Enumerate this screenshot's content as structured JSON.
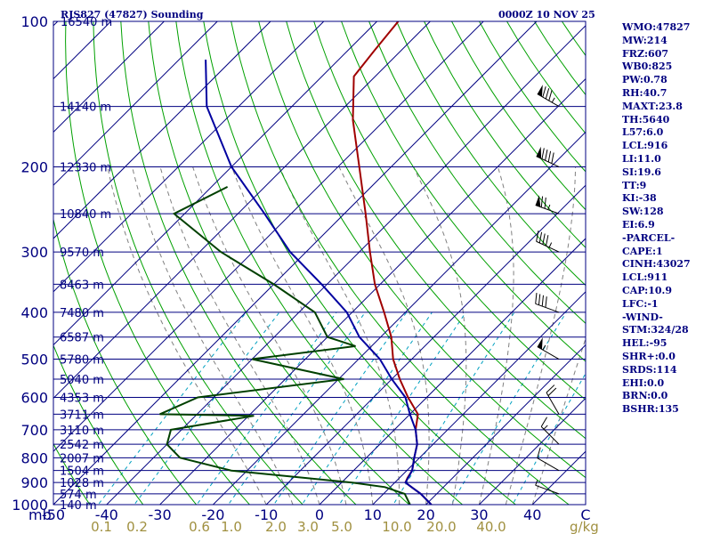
{
  "title": "RJS827 (47827) Sounding",
  "datetime": "0000Z 10 NOV 25",
  "indices": [
    "WMO:47827",
    "MW:214",
    "FRZ:607",
    "WB0:825",
    "PW:0.78",
    "RH:40.7",
    "MAXT:23.8",
    "TH:5640",
    "L57:6.0",
    "LCL:916",
    "LI:11.0",
    "SI:19.6",
    "TT:9",
    "KI:-38",
    "SW:128",
    "EI:6.9",
    "-PARCEL-",
    "CAPE:1",
    "CINH:43027",
    "LCL:911",
    "CAP:10.9",
    "LFC:-1",
    "-WIND-",
    "STM:324/28",
    "HEL:-95",
    "SHR+:0.0",
    "SRDS:114",
    "EHI:0.0",
    "BRN:0.0",
    "BSHR:135"
  ],
  "chart_data": {
    "type": "line",
    "diagram": "skew-T log-P",
    "colors": {
      "frame": "#000080",
      "isobar": "#000080",
      "isotherm": "#000080",
      "dry_adiabat": "#00a000",
      "moist_adiabat": "#808080",
      "mixing_ratio": "#00a0c0",
      "temperature": "#a00000",
      "dewpoint": "#004000",
      "parcel": "#0000a0",
      "wind_barb": "#000000"
    },
    "pressure_axis": {
      "range": [
        1000,
        100
      ],
      "scale": "log",
      "unit": "mb",
      "ticks": [
        100,
        200,
        300,
        400,
        500,
        600,
        700,
        800,
        900,
        1000
      ]
    },
    "temperature_axis": {
      "unit_label": "C",
      "range": [
        -50,
        50
      ],
      "ticks": [
        -50,
        -40,
        -30,
        -20,
        -10,
        0,
        10,
        20,
        30,
        40
      ]
    },
    "mixing_ratio_labels": [
      "0.1",
      "0.2",
      "0.6",
      "1.0",
      "2.0",
      "3.0",
      "5.0",
      "10.0",
      "20.0",
      "40.0"
    ],
    "mixing_ratio_unit": "g/kg",
    "mb_label": "mb",
    "height_levels": [
      {
        "p": 150,
        "label": "14140 m"
      },
      {
        "p": 200,
        "label": "12330 m"
      },
      {
        "p": 250,
        "label": "10840 m"
      },
      {
        "p": 300,
        "label": "9570 m"
      },
      {
        "p": 350,
        "label": "8463 m"
      },
      {
        "p": 400,
        "label": "7480 m"
      },
      {
        "p": 450,
        "label": "6587 m"
      },
      {
        "p": 500,
        "label": "5780 m"
      },
      {
        "p": 550,
        "label": "5040 m"
      },
      {
        "p": 600,
        "label": "4353 m"
      },
      {
        "p": 650,
        "label": "3711 m"
      },
      {
        "p": 700,
        "label": "3110 m"
      },
      {
        "p": 750,
        "label": "2542 m"
      },
      {
        "p": 800,
        "label": "2007 m"
      },
      {
        "p": 850,
        "label": "1504 m"
      },
      {
        "p": 900,
        "label": "1028 m"
      },
      {
        "p": 950,
        "label": "574 m"
      },
      {
        "p": 1000,
        "label": "140 m"
      }
    ],
    "top_height_label": "16540 m",
    "series": [
      {
        "key": "temperature",
        "points": [
          [
            100,
            -76
          ],
          [
            115,
            -75
          ],
          [
            130,
            -74
          ],
          [
            160,
            -66
          ],
          [
            200,
            -56
          ],
          [
            250,
            -46
          ],
          [
            300,
            -38
          ],
          [
            350,
            -31
          ],
          [
            400,
            -24
          ],
          [
            450,
            -18
          ],
          [
            500,
            -13.5
          ],
          [
            550,
            -8.5
          ],
          [
            600,
            -3.5
          ],
          [
            650,
            1.5
          ],
          [
            700,
            4
          ],
          [
            750,
            7
          ],
          [
            800,
            9
          ],
          [
            850,
            11
          ],
          [
            880,
            11.5
          ],
          [
            900,
            12
          ],
          [
            920,
            14
          ],
          [
            950,
            17
          ],
          [
            1000,
            21
          ]
        ]
      },
      {
        "key": "dewpoint",
        "points": [
          [
            220,
            -77
          ],
          [
            250,
            -82
          ],
          [
            300,
            -66
          ],
          [
            350,
            -50
          ],
          [
            400,
            -37
          ],
          [
            450,
            -30
          ],
          [
            470,
            -23
          ],
          [
            500,
            -40
          ],
          [
            550,
            -19
          ],
          [
            600,
            -43
          ],
          [
            650,
            -47
          ],
          [
            655,
            -29
          ],
          [
            700,
            -42
          ],
          [
            750,
            -40
          ],
          [
            800,
            -35
          ],
          [
            850,
            -23
          ],
          [
            900,
            2
          ],
          [
            920,
            9
          ],
          [
            950,
            14
          ],
          [
            1000,
            17
          ]
        ]
      },
      {
        "key": "parcel",
        "points": [
          [
            120,
            -105
          ],
          [
            150,
            -96
          ],
          [
            200,
            -80
          ],
          [
            250,
            -65
          ],
          [
            300,
            -53
          ],
          [
            350,
            -41
          ],
          [
            400,
            -31
          ],
          [
            450,
            -24
          ],
          [
            500,
            -16
          ],
          [
            550,
            -10
          ],
          [
            600,
            -4
          ],
          [
            650,
            0
          ],
          [
            700,
            4
          ],
          [
            750,
            7
          ],
          [
            800,
            9
          ],
          [
            850,
            11
          ],
          [
            900,
            12
          ],
          [
            920,
            14
          ],
          [
            950,
            17
          ],
          [
            1000,
            21
          ]
        ]
      }
    ],
    "wind_barbs": [
      {
        "p": 150,
        "dir": 300,
        "speed": 85
      },
      {
        "p": 200,
        "dir": 295,
        "speed": 90
      },
      {
        "p": 250,
        "dir": 290,
        "speed": 75
      },
      {
        "p": 300,
        "dir": 295,
        "speed": 45
      },
      {
        "p": 400,
        "dir": 290,
        "speed": 40
      },
      {
        "p": 500,
        "dir": 300,
        "speed": 55
      },
      {
        "p": 650,
        "dir": 330,
        "speed": 20
      },
      {
        "p": 750,
        "dir": 315,
        "speed": 15
      },
      {
        "p": 850,
        "dir": 300,
        "speed": 10
      },
      {
        "p": 950,
        "dir": 290,
        "speed": 5
      }
    ]
  }
}
